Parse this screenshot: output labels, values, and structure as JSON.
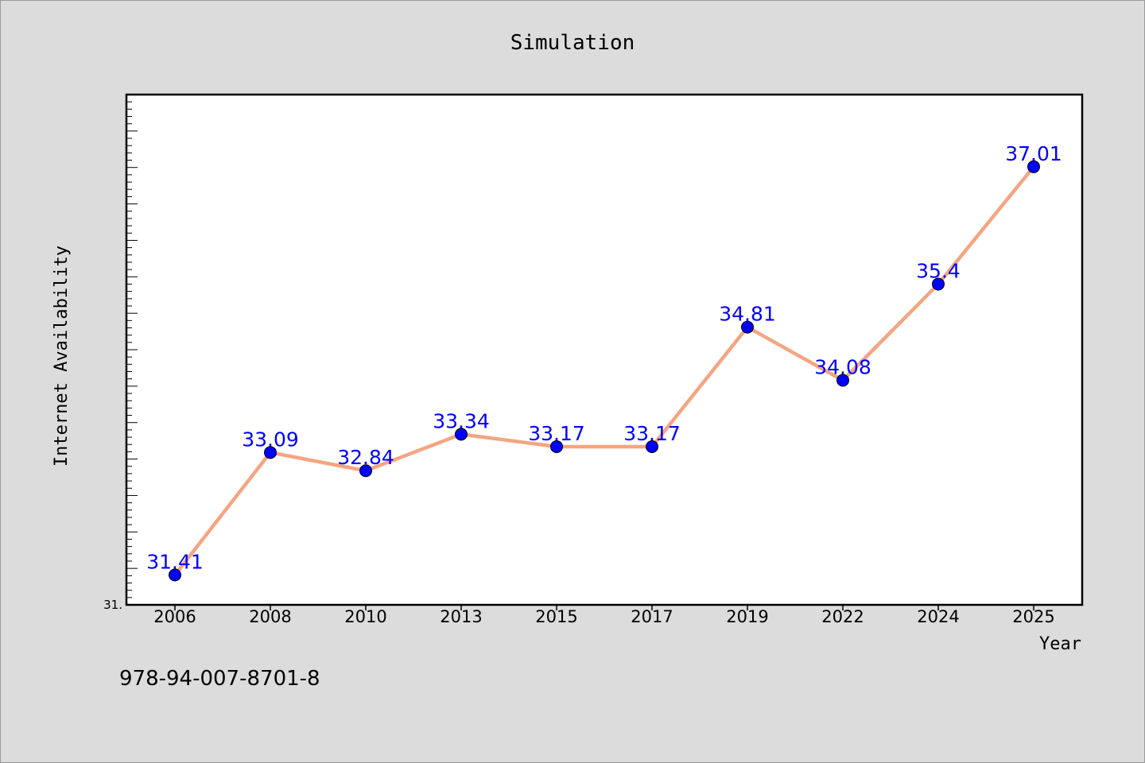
{
  "chart_data": {
    "type": "line",
    "title": "Simulation",
    "xlabel": "Year",
    "ylabel": "Internet Availability",
    "categories": [
      "2006",
      "2008",
      "2010",
      "2013",
      "2015",
      "2017",
      "2019",
      "2022",
      "2024",
      "2025"
    ],
    "series": [
      {
        "values": [
          31.41,
          33.09,
          32.84,
          33.34,
          33.17,
          33.17,
          34.81,
          34.08,
          35.4,
          37.01
        ],
        "labels": [
          "31.41",
          "33.09",
          "32.84",
          "33.34",
          "33.17",
          "33.17",
          "34.81",
          "34.08",
          "35.4",
          "37.01"
        ]
      }
    ],
    "ylim": [
      31.0,
      38.0
    ],
    "ytick_labels": [
      "31."
    ],
    "grid": false,
    "legend": false,
    "line_color": "#f4a582",
    "marker_color": "#0000ff",
    "label_color": "#0000ff",
    "background": "#dcdcdc",
    "plot_background": "#ffffff"
  },
  "footer": {
    "text": "978-94-007-8701-8"
  }
}
